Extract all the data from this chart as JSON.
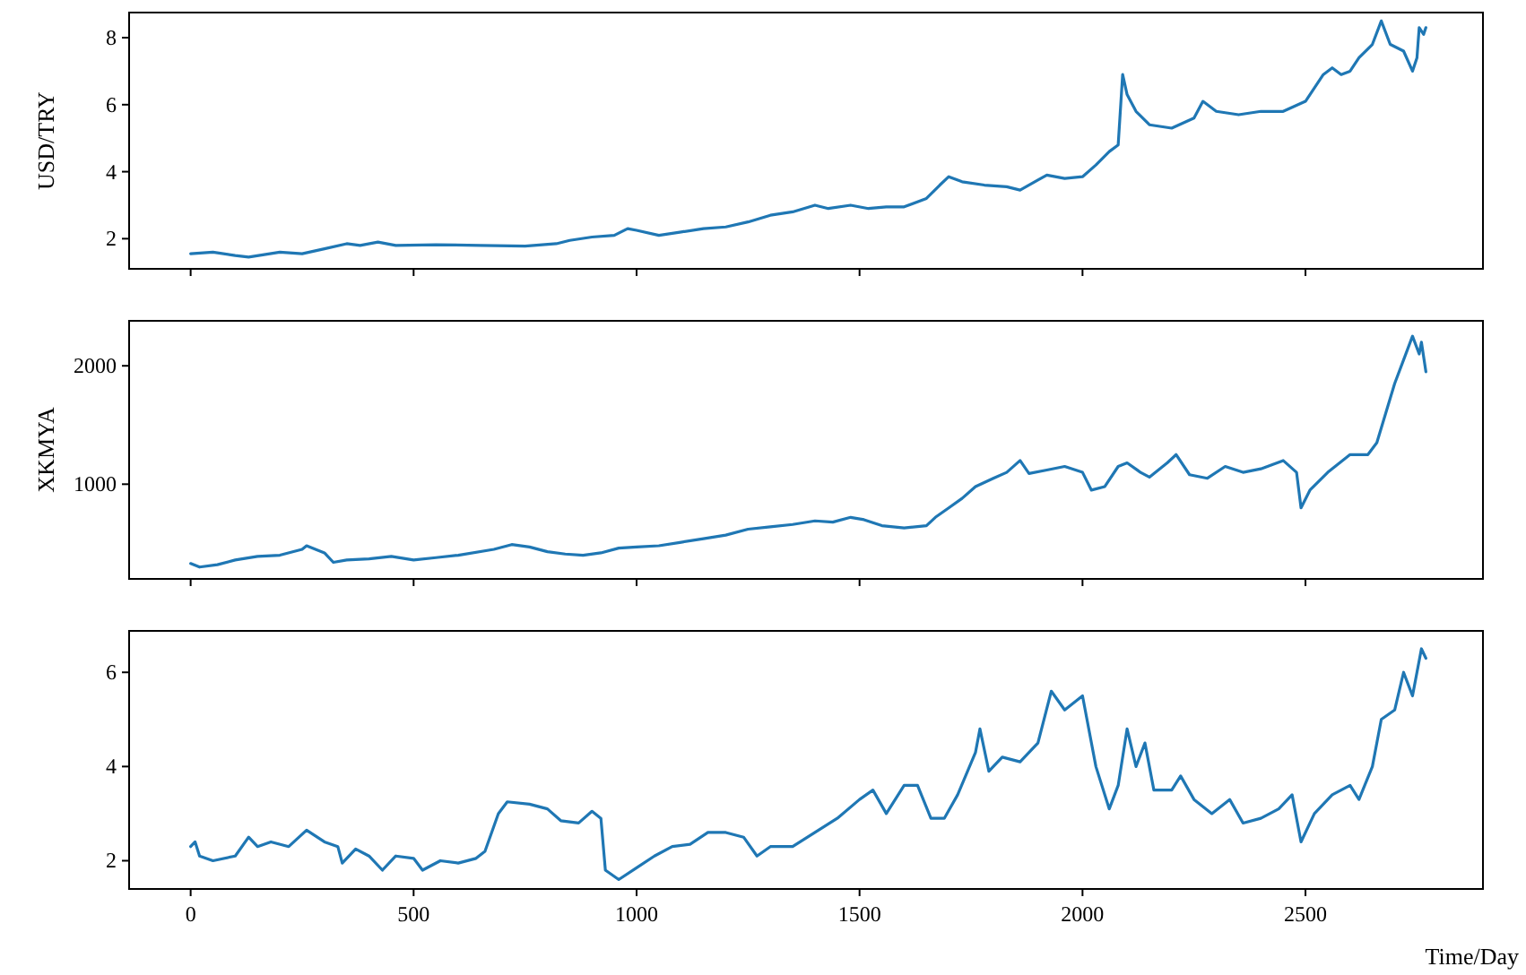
{
  "chart_data": [
    {
      "type": "line",
      "ylabel": "USD/TRY",
      "xlim": [
        -138,
        2898
      ],
      "ylim": [
        1.1,
        8.75
      ],
      "xticks": [
        0,
        500,
        1000,
        1500,
        2000,
        2500
      ],
      "yticks": [
        2,
        4,
        6,
        8
      ],
      "tick_labels": "y",
      "series": [
        {
          "color": "#1f77b4",
          "x": [
            0,
            50,
            100,
            130,
            200,
            250,
            300,
            350,
            380,
            420,
            460,
            550,
            650,
            750,
            820,
            850,
            900,
            950,
            980,
            1000,
            1050,
            1100,
            1150,
            1200,
            1250,
            1300,
            1350,
            1400,
            1430,
            1480,
            1520,
            1560,
            1600,
            1650,
            1680,
            1700,
            1730,
            1780,
            1830,
            1860,
            1900,
            1920,
            1960,
            2000,
            2030,
            2060,
            2080,
            2090,
            2100,
            2120,
            2150,
            2200,
            2250,
            2270,
            2300,
            2350,
            2400,
            2450,
            2500,
            2540,
            2560,
            2580,
            2600,
            2620,
            2650,
            2670,
            2690,
            2720,
            2740,
            2750,
            2755,
            2765,
            2770
          ],
          "values": [
            1.55,
            1.6,
            1.5,
            1.45,
            1.6,
            1.55,
            1.7,
            1.85,
            1.8,
            1.9,
            1.8,
            1.82,
            1.8,
            1.78,
            1.85,
            1.95,
            2.05,
            2.1,
            2.3,
            2.25,
            2.1,
            2.2,
            2.3,
            2.35,
            2.5,
            2.7,
            2.8,
            3.0,
            2.9,
            3.0,
            2.9,
            2.95,
            2.95,
            3.2,
            3.6,
            3.85,
            3.7,
            3.6,
            3.55,
            3.45,
            3.75,
            3.9,
            3.8,
            3.85,
            4.2,
            4.6,
            4.8,
            6.9,
            6.3,
            5.8,
            5.4,
            5.3,
            5.6,
            6.1,
            5.8,
            5.7,
            5.8,
            5.8,
            6.1,
            6.9,
            7.1,
            6.9,
            7.0,
            7.4,
            7.8,
            8.5,
            7.8,
            7.6,
            7.0,
            7.4,
            8.3,
            8.1,
            8.3
          ]
        }
      ]
    },
    {
      "type": "line",
      "ylabel": "XKMYA",
      "xlim": [
        -138,
        2898
      ],
      "ylim": [
        200,
        2380
      ],
      "xticks": [
        0,
        500,
        1000,
        1500,
        2000,
        2500
      ],
      "yticks": [
        1000,
        2000
      ],
      "tick_labels": "y",
      "series": [
        {
          "color": "#1f77b4",
          "x": [
            0,
            20,
            60,
            100,
            150,
            200,
            250,
            260,
            300,
            320,
            350,
            400,
            450,
            500,
            550,
            600,
            680,
            720,
            760,
            800,
            840,
            880,
            920,
            960,
            1000,
            1050,
            1100,
            1150,
            1200,
            1250,
            1300,
            1350,
            1400,
            1440,
            1480,
            1510,
            1550,
            1600,
            1650,
            1670,
            1700,
            1730,
            1760,
            1800,
            1830,
            1860,
            1880,
            1920,
            1960,
            2000,
            2020,
            2050,
            2080,
            2100,
            2130,
            2150,
            2190,
            2210,
            2240,
            2280,
            2320,
            2360,
            2400,
            2450,
            2480,
            2490,
            2510,
            2550,
            2600,
            2640,
            2660,
            2680,
            2700,
            2720,
            2740,
            2755,
            2760,
            2770
          ],
          "values": [
            330,
            300,
            320,
            360,
            390,
            400,
            450,
            480,
            420,
            340,
            360,
            370,
            390,
            360,
            380,
            400,
            450,
            490,
            470,
            430,
            410,
            400,
            420,
            460,
            470,
            480,
            510,
            540,
            570,
            620,
            640,
            660,
            690,
            680,
            720,
            700,
            650,
            630,
            650,
            720,
            800,
            880,
            980,
            1050,
            1100,
            1200,
            1090,
            1120,
            1150,
            1100,
            950,
            980,
            1150,
            1180,
            1100,
            1060,
            1180,
            1250,
            1080,
            1050,
            1150,
            1100,
            1130,
            1200,
            1100,
            800,
            950,
            1100,
            1250,
            1250,
            1350,
            1600,
            1850,
            2050,
            2250,
            2100,
            2200,
            1950
          ]
        }
      ]
    },
    {
      "type": "line",
      "xlabel": "Time/Day",
      "xlim": [
        -138,
        2898
      ],
      "ylim": [
        1.4,
        6.88
      ],
      "xticks": [
        0,
        500,
        1000,
        1500,
        2000,
        2500
      ],
      "yticks": [
        2,
        4,
        6
      ],
      "series": [
        {
          "color": "#1f77b4",
          "x": [
            0,
            10,
            20,
            50,
            100,
            130,
            150,
            180,
            220,
            260,
            300,
            330,
            340,
            370,
            400,
            430,
            460,
            500,
            520,
            560,
            600,
            640,
            660,
            690,
            710,
            760,
            800,
            830,
            870,
            900,
            920,
            930,
            960,
            1000,
            1040,
            1080,
            1120,
            1160,
            1200,
            1240,
            1270,
            1300,
            1350,
            1400,
            1450,
            1500,
            1530,
            1560,
            1600,
            1630,
            1660,
            1690,
            1720,
            1760,
            1770,
            1790,
            1820,
            1860,
            1900,
            1930,
            1960,
            2000,
            2030,
            2060,
            2080,
            2100,
            2120,
            2140,
            2160,
            2200,
            2220,
            2250,
            2290,
            2330,
            2360,
            2400,
            2440,
            2470,
            2490,
            2520,
            2560,
            2600,
            2620,
            2650,
            2670,
            2700,
            2720,
            2740,
            2760,
            2770
          ],
          "values": [
            2.3,
            2.4,
            2.1,
            2.0,
            2.1,
            2.5,
            2.3,
            2.4,
            2.3,
            2.65,
            2.4,
            2.3,
            1.95,
            2.25,
            2.1,
            1.8,
            2.1,
            2.05,
            1.8,
            2.0,
            1.95,
            2.05,
            2.2,
            3.0,
            3.25,
            3.2,
            3.1,
            2.85,
            2.8,
            3.05,
            2.9,
            1.8,
            1.6,
            1.85,
            2.1,
            2.3,
            2.35,
            2.6,
            2.6,
            2.5,
            2.1,
            2.3,
            2.3,
            2.6,
            2.9,
            3.3,
            3.5,
            3.0,
            3.6,
            3.6,
            2.9,
            2.9,
            3.4,
            4.3,
            4.8,
            3.9,
            4.2,
            4.1,
            4.5,
            5.6,
            5.2,
            5.5,
            4.0,
            3.1,
            3.6,
            4.8,
            4.0,
            4.5,
            3.5,
            3.5,
            3.8,
            3.3,
            3.0,
            3.3,
            2.8,
            2.9,
            3.1,
            3.4,
            2.4,
            3.0,
            3.4,
            3.6,
            3.3,
            4.0,
            5.0,
            5.2,
            6.0,
            5.5,
            6.5,
            6.3
          ]
        }
      ]
    }
  ]
}
